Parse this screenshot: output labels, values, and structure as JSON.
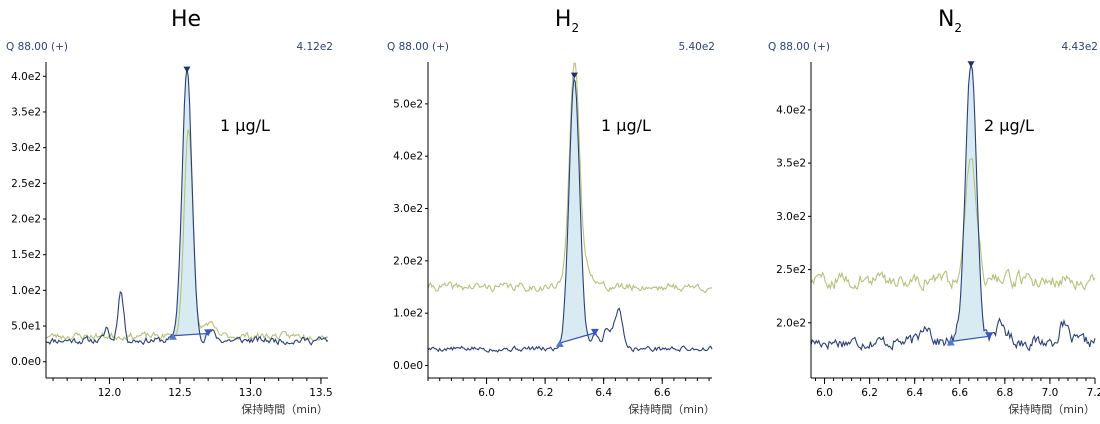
{
  "colors": {
    "blue": "#2a3f7a",
    "green": "#b5c27a",
    "fill": "#d8ebf3",
    "marker": "#5577cc"
  },
  "chart_data": [
    {
      "type": "line",
      "title": "He",
      "title_sub": "",
      "ion_label": "Q 88.00 (+)",
      "max_label": "4.12e2",
      "concentration": "1 μg/L",
      "xlabel": "保持時間（min）",
      "xlim": [
        11.55,
        13.55
      ],
      "ylim": [
        -20,
        420
      ],
      "xticks": [
        12.0,
        12.5,
        13.0,
        13.5
      ],
      "xtick_labels": [
        "12.0",
        "12.5",
        "13.0",
        "13.5"
      ],
      "yticks": [
        0,
        50,
        100,
        150,
        200,
        250,
        300,
        350,
        400
      ],
      "ytick_labels": [
        "0.0e0",
        "5.0e1",
        "1.0e2",
        "1.5e2",
        "2.0e2",
        "2.5e2",
        "3.0e2",
        "3.5e2",
        "4.0e2"
      ],
      "series": [
        {
          "role": "sample",
          "color": "#2a3f7a",
          "baseline": 30,
          "noise": 5,
          "seed": 11,
          "peaks": [
            [
              12.55,
              378,
              0.035
            ],
            [
              12.08,
              70,
              0.02
            ],
            [
              11.98,
              18,
              0.015
            ],
            [
              12.72,
              12,
              0.03
            ]
          ]
        },
        {
          "role": "reference",
          "color": "#b5c27a",
          "baseline": 36,
          "noise": 5,
          "seed": 23,
          "peaks": [
            [
              12.56,
              295,
              0.03
            ],
            [
              12.7,
              18,
              0.04
            ]
          ]
        }
      ],
      "integration": {
        "start": 12.45,
        "end": 12.7,
        "peak_x": 12.55
      }
    },
    {
      "type": "line",
      "title": "H",
      "title_sub": "2",
      "ion_label": "Q 88.00 (+)",
      "max_label": "5.40e2",
      "concentration": "1 μg/L",
      "xlabel": "保持時間（min）",
      "xlim": [
        5.8,
        6.77
      ],
      "ylim": [
        -20,
        580
      ],
      "xticks": [
        6.0,
        6.2,
        6.4,
        6.6
      ],
      "xtick_labels": [
        "6.0",
        "6.2",
        "6.4",
        "6.6"
      ],
      "yticks": [
        0,
        100,
        200,
        300,
        400,
        500
      ],
      "ytick_labels": [
        "0.0e0",
        "1.0e2",
        "2.0e2",
        "3.0e2",
        "4.0e2",
        "5.0e2"
      ],
      "series": [
        {
          "role": "sample",
          "color": "#2a3f7a",
          "baseline": 32,
          "noise": 5,
          "seed": 5,
          "peaks": [
            [
              6.3,
              520,
              0.018
            ],
            [
              6.45,
              75,
              0.015
            ],
            [
              6.41,
              35,
              0.012
            ],
            [
              6.37,
              30,
              0.012
            ]
          ]
        },
        {
          "role": "reference",
          "color": "#b5c27a",
          "baseline": 150,
          "noise": 8,
          "seed": 41,
          "peaks": [
            [
              6.3,
              430,
              0.017
            ],
            [
              6.35,
              30,
              0.02
            ]
          ]
        }
      ],
      "integration": {
        "start": 6.25,
        "end": 6.37,
        "peak_x": 6.3
      }
    },
    {
      "type": "line",
      "title": "N",
      "title_sub": "2",
      "ion_label": "Q 88.00 (+)",
      "max_label": "4.43e2",
      "concentration": "2 μg/L",
      "xlabel": "保持時間（min）",
      "xlim": [
        5.94,
        7.2
      ],
      "ylim": [
        150,
        445
      ],
      "xticks": [
        6.0,
        6.2,
        6.4,
        6.6,
        6.8,
        7.0,
        7.2
      ],
      "xtick_labels": [
        "6.0",
        "6.2",
        "6.4",
        "6.6",
        "6.8",
        "7.0",
        "7.2"
      ],
      "yticks": [
        200,
        250,
        300,
        350,
        400
      ],
      "ytick_labels": [
        "2.0e2",
        "2.5e2",
        "3.0e2",
        "3.5e2",
        "4.0e2"
      ],
      "series": [
        {
          "role": "sample",
          "color": "#2a3f7a",
          "baseline": 182,
          "noise": 6,
          "seed": 17,
          "peaks": [
            [
              6.65,
              260,
              0.025
            ],
            [
              6.45,
              18,
              0.02
            ],
            [
              6.78,
              15,
              0.03
            ],
            [
              7.06,
              15,
              0.02
            ]
          ]
        },
        {
          "role": "reference",
          "color": "#b5c27a",
          "baseline": 240,
          "noise": 7,
          "seed": 59,
          "peaks": [
            [
              6.65,
              120,
              0.024
            ]
          ]
        }
      ],
      "integration": {
        "start": 6.56,
        "end": 6.73,
        "peak_x": 6.65
      }
    }
  ]
}
